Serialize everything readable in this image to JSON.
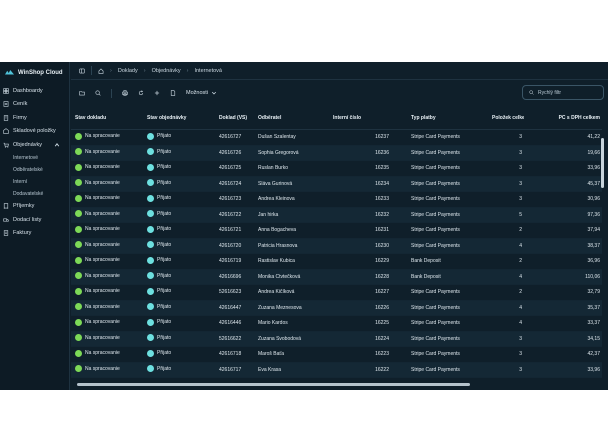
{
  "app": {
    "brand": "WinShop Cloud",
    "accent_color": "#7dd957",
    "order_color": "#6de0e0"
  },
  "sidebar": {
    "items": [
      {
        "label": "Dashboardy",
        "icon": "dashboard-icon"
      },
      {
        "label": "Ceník",
        "icon": "pricelist-icon"
      },
      {
        "label": "Firmy",
        "icon": "building-icon"
      },
      {
        "label": "Skladové položky",
        "icon": "warehouse-icon"
      },
      {
        "label": "Objednávky",
        "icon": "orders-icon"
      },
      {
        "label": "Příjemky",
        "icon": "receipt-icon"
      },
      {
        "label": "Dodací listy",
        "icon": "delivery-note-icon"
      },
      {
        "label": "Faktury",
        "icon": "invoice-icon"
      }
    ],
    "sub_items": [
      "Internetové",
      "Odběratelské",
      "Interní",
      "Dodavatelské"
    ]
  },
  "breadcrumb": [
    "Doklady",
    "Objednávky",
    "Internetová"
  ],
  "toolbar": {
    "more_label": "Možnosti",
    "quick_filter_placeholder": "Rychlý filtr"
  },
  "table": {
    "headers": [
      "Stav dokladu",
      "Stav objednávky",
      "Doklad (VS)",
      "Odběratel",
      "Interní číslo",
      "Typ platby",
      "Položek celkem",
      "PC s DPH celkem"
    ],
    "rows": [
      [
        "Na spracovanie",
        "Přijato",
        "42616727",
        "Dušan Szalentay",
        "16237",
        "Stripe Card Payments",
        "3",
        "41,22"
      ],
      [
        "Na spracovanie",
        "Přijato",
        "42616726",
        "Sophia Gregorová",
        "16236",
        "Stripe Card Payments",
        "3",
        "19,66"
      ],
      [
        "Na spracovanie",
        "Přijato",
        "42616725",
        "Ruslan Burko",
        "16235",
        "Stripe Card Payments",
        "3",
        "33,96"
      ],
      [
        "Na spracovanie",
        "Přijato",
        "42616724",
        "Slávа Gurinová",
        "16234",
        "Stripe Card Payments",
        "3",
        "45,37"
      ],
      [
        "Na spracovanie",
        "Přijato",
        "42616723",
        "Andrea Kleinova",
        "16233",
        "Stripe Card Payments",
        "3",
        "30,96"
      ],
      [
        "Na spracovanie",
        "Přijato",
        "42616722",
        "Jan hirka",
        "16232",
        "Stripe Card Payments",
        "5",
        "97,36"
      ],
      [
        "Na spracovanie",
        "Přijato",
        "42616721",
        "Anna Bogacheva",
        "16231",
        "Stripe Card Payments",
        "2",
        "37,94"
      ],
      [
        "Na spracovanie",
        "Přijato",
        "42616720",
        "Patricia Hrasnova",
        "16230",
        "Stripe Card Payments",
        "4",
        "38,37"
      ],
      [
        "Na spracovanie",
        "Přijato",
        "42616719",
        "Rastislav Kubica",
        "16229",
        "Bank Deposit",
        "2",
        "36,96"
      ],
      [
        "Na spracovanie",
        "Přijato",
        "42616696",
        "Monika Čtvtečková",
        "16228",
        "Bank Deposit",
        "4",
        "110,06"
      ],
      [
        "Na spracovanie",
        "Přijato",
        "52616623",
        "Andrea Kičíková",
        "16227",
        "Stripe Card Payments",
        "2",
        "32,79"
      ],
      [
        "Na spracovanie",
        "Přijato",
        "42616447",
        "Zuzana Meznesova",
        "16226",
        "Stripe Card Payments",
        "4",
        "35,37"
      ],
      [
        "Na spracovanie",
        "Přijato",
        "42616446",
        "Mario Kardos",
        "16225",
        "Stripe Card Payments",
        "4",
        "33,37"
      ],
      [
        "Na spracovanie",
        "Přijato",
        "52616622",
        "Zuzana Svobodová",
        "16224",
        "Stripe Card Payments",
        "3",
        "34,15"
      ],
      [
        "Na spracovanie",
        "Přijato",
        "42616718",
        "Maroš Baťa",
        "16223",
        "Stripe Card Payments",
        "3",
        "42,37"
      ],
      [
        "Na spracovanie",
        "Přijato",
        "42616717",
        "Eva Krasa",
        "16222",
        "Stripe Card Payments",
        "3",
        "33,96"
      ]
    ]
  }
}
